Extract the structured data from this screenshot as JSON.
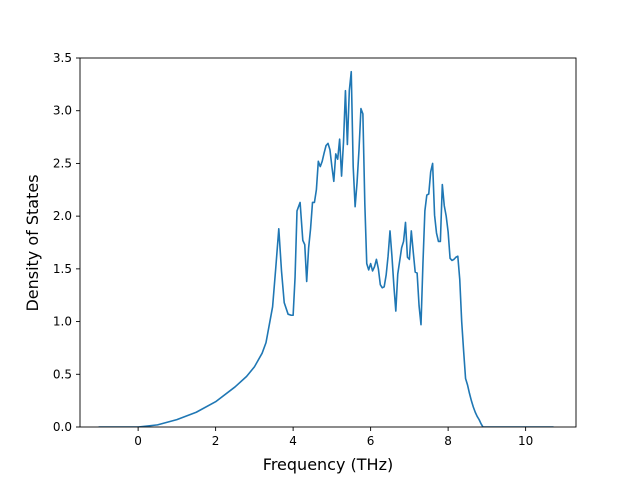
{
  "chart_data": {
    "type": "line",
    "title": "",
    "xlabel": "Frequency (THz)",
    "ylabel": "Density of States",
    "xlim": [
      -1.5,
      11.3
    ],
    "ylim": [
      0.0,
      3.5
    ],
    "grid": false,
    "legend": "none",
    "xticks": [
      0,
      2,
      4,
      6,
      8,
      10
    ],
    "yticks": [
      0.0,
      0.5,
      1.0,
      1.5,
      2.0,
      2.5,
      3.0,
      3.5
    ],
    "xtick_labels": [
      "0",
      "2",
      "4",
      "6",
      "8",
      "10"
    ],
    "ytick_labels": [
      "0.0",
      "0.5",
      "1.0",
      "1.5",
      "2.0",
      "2.5",
      "3.0",
      "3.5"
    ],
    "colors": {
      "line": "#1f77b4",
      "axes": "#000000",
      "background": "#ffffff"
    },
    "series": [
      {
        "x": [
          -1.0,
          0.0,
          0.5,
          1.0,
          1.5,
          2.0,
          2.5,
          2.8,
          3.0,
          3.2,
          3.3,
          3.35,
          3.4,
          3.47,
          3.55,
          3.63,
          3.7,
          3.77,
          3.87,
          3.95,
          4.0,
          4.05,
          4.1,
          4.18,
          4.25,
          4.3,
          4.35,
          4.4,
          4.45,
          4.5,
          4.55,
          4.6,
          4.65,
          4.7,
          4.75,
          4.8,
          4.85,
          4.9,
          4.95,
          5.0,
          5.05,
          5.1,
          5.15,
          5.2,
          5.25,
          5.3,
          5.35,
          5.4,
          5.45,
          5.5,
          5.55,
          5.6,
          5.65,
          5.7,
          5.75,
          5.8,
          5.85,
          5.9,
          5.95,
          6.0,
          6.05,
          6.1,
          6.15,
          6.2,
          6.25,
          6.3,
          6.35,
          6.4,
          6.45,
          6.5,
          6.55,
          6.6,
          6.65,
          6.7,
          6.8,
          6.85,
          6.9,
          6.95,
          7.0,
          7.05,
          7.1,
          7.15,
          7.2,
          7.25,
          7.3,
          7.35,
          7.4,
          7.45,
          7.5,
          7.55,
          7.6,
          7.65,
          7.7,
          7.75,
          7.8,
          7.85,
          7.9,
          7.95,
          8.0,
          8.05,
          8.1,
          8.15,
          8.2,
          8.25,
          8.3,
          8.35,
          8.4,
          8.45,
          8.5,
          8.55,
          8.6,
          8.65,
          8.7,
          8.75,
          8.8,
          8.85,
          8.9,
          8.95,
          9.0,
          9.1,
          9.2,
          9.3,
          9.4,
          9.5,
          9.6,
          9.65,
          9.7,
          9.75,
          9.8,
          10.0,
          10.7
        ],
        "y": [
          0.0,
          0.0,
          0.02,
          0.07,
          0.14,
          0.24,
          0.38,
          0.48,
          0.57,
          0.7,
          0.8,
          0.9,
          1.0,
          1.14,
          1.5,
          1.88,
          1.48,
          1.18,
          1.07,
          1.06,
          1.06,
          1.42,
          2.05,
          2.13,
          1.77,
          1.73,
          1.38,
          1.7,
          1.88,
          2.13,
          2.13,
          2.25,
          2.52,
          2.47,
          2.52,
          2.6,
          2.67,
          2.69,
          2.63,
          2.47,
          2.33,
          2.59,
          2.54,
          2.73,
          2.38,
          2.7,
          3.19,
          2.68,
          3.19,
          3.37,
          2.47,
          2.09,
          2.32,
          2.63,
          3.02,
          2.97,
          2.12,
          1.55,
          1.49,
          1.55,
          1.48,
          1.52,
          1.59,
          1.5,
          1.35,
          1.32,
          1.33,
          1.44,
          1.62,
          1.86,
          1.62,
          1.34,
          1.1,
          1.45,
          1.7,
          1.76,
          1.94,
          1.61,
          1.59,
          1.86,
          1.66,
          1.47,
          1.46,
          1.15,
          0.97,
          1.55,
          2.05,
          2.2,
          2.21,
          2.42,
          2.5,
          2.01,
          1.84,
          1.76,
          1.76,
          2.3,
          2.1,
          2.0,
          1.85,
          1.6,
          1.58,
          1.59,
          1.61,
          1.62,
          1.4,
          1.0,
          0.72,
          0.46,
          0.4,
          0.32,
          0.25,
          0.19,
          0.14,
          0.1,
          0.07,
          0.03,
          0.0,
          0.0,
          0.0,
          0.0,
          0.0,
          0.0,
          0.0,
          0.0,
          0.0,
          0.0,
          0.0,
          0.0,
          0.0,
          0.0,
          0.0
        ]
      }
    ]
  }
}
